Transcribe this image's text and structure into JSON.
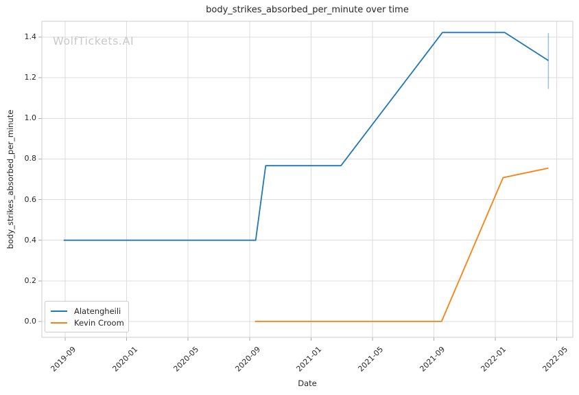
{
  "watermark": "WolfTickets.AI",
  "chart_data": {
    "type": "line",
    "title": "body_strikes_absorbed_per_minute over time",
    "xlabel": "Date",
    "ylabel": "body_strikes_absorbed_per_minute",
    "grid": true,
    "legend_position": "lower-left",
    "x_unit": "months since 2019-09",
    "xlim_months": [
      -1.52,
      33.04
    ],
    "ylim": [
      -0.078,
      1.478
    ],
    "x_ticks": [
      {
        "m": 0,
        "label": "2019-09"
      },
      {
        "m": 4,
        "label": "2020-01"
      },
      {
        "m": 8,
        "label": "2020-05"
      },
      {
        "m": 12,
        "label": "2020-09"
      },
      {
        "m": 16,
        "label": "2021-01"
      },
      {
        "m": 20,
        "label": "2021-05"
      },
      {
        "m": 24,
        "label": "2021-09"
      },
      {
        "m": 28,
        "label": "2022-01"
      },
      {
        "m": 32,
        "label": "2022-05"
      }
    ],
    "y_ticks": [
      0.0,
      0.2,
      0.4,
      0.6,
      0.8,
      1.0,
      1.2,
      1.4
    ],
    "series": [
      {
        "name": "Alatengheili",
        "color": "#1f77b4",
        "points": [
          {
            "date": "2019-09",
            "m": -0.1,
            "y": 0.4
          },
          {
            "date": "2020-09",
            "m": 12.4,
            "y": 0.4
          },
          {
            "date": "2020-10",
            "m": 13.05,
            "y": 0.767
          },
          {
            "date": "2021-03",
            "m": 17.95,
            "y": 0.767
          },
          {
            "date": "2021-09",
            "m": 24.55,
            "y": 1.423
          },
          {
            "date": "2022-01",
            "m": 28.6,
            "y": 1.423
          },
          {
            "date": "2022-04",
            "m": 31.45,
            "y": 1.285
          }
        ],
        "error_bar": {
          "m": 31.45,
          "y_low": 1.145,
          "y_high": 1.42,
          "color": "rgba(31,119,180,0.45)"
        }
      },
      {
        "name": "Kevin Croom",
        "color": "#ff7f0e",
        "points": [
          {
            "date": "2020-09",
            "m": 12.35,
            "y": 0.0
          },
          {
            "date": "2021-09",
            "m": 24.5,
            "y": 0.0
          },
          {
            "date": "2022-01",
            "m": 28.5,
            "y": 0.708
          },
          {
            "date": "2022-04",
            "m": 31.45,
            "y": 0.755
          }
        ]
      }
    ],
    "style": {
      "grid_color": "#dcdcdc",
      "spine_color": "#cccccc",
      "tick_color": "#aaaaaa",
      "text_color": "#262626",
      "watermark_color": "#c9c9c9",
      "line_width": 1.8
    }
  }
}
